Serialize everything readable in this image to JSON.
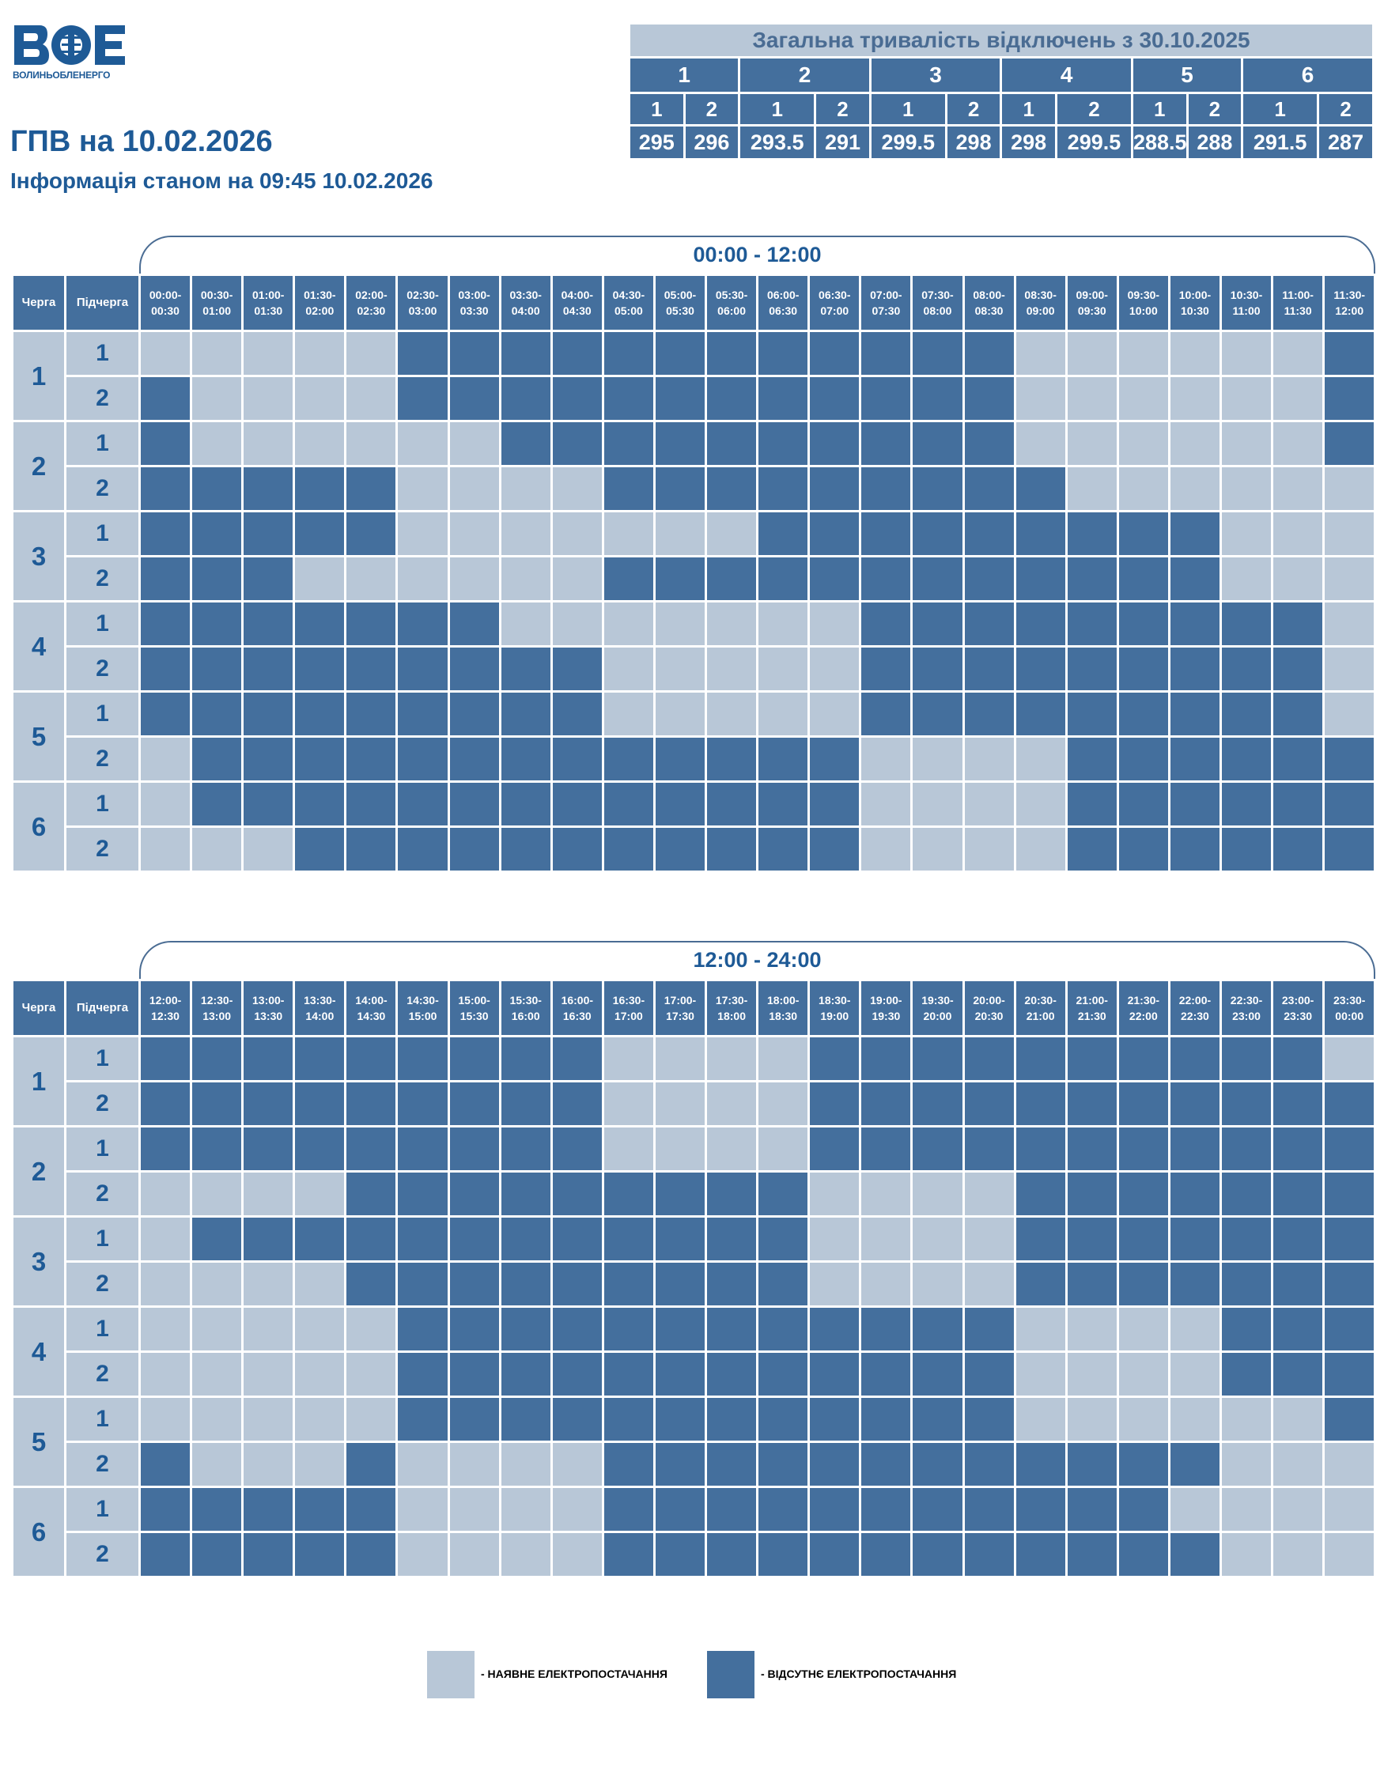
{
  "logo": {
    "caption": "ВОЛИНЬОБЛЕНЕРГО",
    "mark": "ВОЕ"
  },
  "title": "ГПВ на 10.02.2026",
  "subtitle": "Інформація станом на 09:45 10.02.2026",
  "summary": {
    "title": "Загальна тривалість відключень з 30.10.2025",
    "queues": [
      "1",
      "2",
      "3",
      "4",
      "5",
      "6"
    ],
    "subqueues": [
      "1",
      "2",
      "1",
      "2",
      "1",
      "2",
      "1",
      "2",
      "1",
      "2",
      "1",
      "2"
    ],
    "values": [
      "295",
      "296",
      "293.5",
      "291",
      "299.5",
      "298",
      "298",
      "299.5",
      "288.5",
      "288",
      "291.5",
      "287"
    ]
  },
  "table_headers": {
    "queue": "Черга",
    "subqueue": "Підчерга"
  },
  "blocks": [
    {
      "range": "00:00 - 12:00",
      "slots": [
        [
          "00:00-",
          "00:30"
        ],
        [
          "00:30-",
          "01:00"
        ],
        [
          "01:00-",
          "01:30"
        ],
        [
          "01:30-",
          "02:00"
        ],
        [
          "02:00-",
          "02:30"
        ],
        [
          "02:30-",
          "03:00"
        ],
        [
          "03:00-",
          "03:30"
        ],
        [
          "03:30-",
          "04:00"
        ],
        [
          "04:00-",
          "04:30"
        ],
        [
          "04:30-",
          "05:00"
        ],
        [
          "05:00-",
          "05:30"
        ],
        [
          "05:30-",
          "06:00"
        ],
        [
          "06:00-",
          "06:30"
        ],
        [
          "06:30-",
          "07:00"
        ],
        [
          "07:00-",
          "07:30"
        ],
        [
          "07:30-",
          "08:00"
        ],
        [
          "08:00-",
          "08:30"
        ],
        [
          "08:30-",
          "09:00"
        ],
        [
          "09:00-",
          "09:30"
        ],
        [
          "09:30-",
          "10:00"
        ],
        [
          "10:00-",
          "10:30"
        ],
        [
          "10:30-",
          "11:00"
        ],
        [
          "11:00-",
          "11:30"
        ],
        [
          "11:30-",
          "12:00"
        ]
      ],
      "rows": [
        {
          "queue": "1",
          "sub": "1",
          "cells": "000001111111111110000001"
        },
        {
          "queue": "1",
          "sub": "2",
          "cells": "100001111111111110000001"
        },
        {
          "queue": "2",
          "sub": "1",
          "cells": "100000011111111110000001"
        },
        {
          "queue": "2",
          "sub": "2",
          "cells": "111110000111111111000000"
        },
        {
          "queue": "3",
          "sub": "1",
          "cells": "111110000000111111111000"
        },
        {
          "queue": "3",
          "sub": "2",
          "cells": "111000000111111111111000"
        },
        {
          "queue": "4",
          "sub": "1",
          "cells": "111111100000001111111110"
        },
        {
          "queue": "4",
          "sub": "2",
          "cells": "111111111000001111111110"
        },
        {
          "queue": "5",
          "sub": "1",
          "cells": "111111111000001111111110"
        },
        {
          "queue": "5",
          "sub": "2",
          "cells": "011111111111110000111111"
        },
        {
          "queue": "6",
          "sub": "1",
          "cells": "011111111111110000111111"
        },
        {
          "queue": "6",
          "sub": "2",
          "cells": "000111111111110000111111"
        }
      ]
    },
    {
      "range": "12:00 - 24:00",
      "slots": [
        [
          "12:00-",
          "12:30"
        ],
        [
          "12:30-",
          "13:00"
        ],
        [
          "13:00-",
          "13:30"
        ],
        [
          "13:30-",
          "14:00"
        ],
        [
          "14:00-",
          "14:30"
        ],
        [
          "14:30-",
          "15:00"
        ],
        [
          "15:00-",
          "15:30"
        ],
        [
          "15:30-",
          "16:00"
        ],
        [
          "16:00-",
          "16:30"
        ],
        [
          "16:30-",
          "17:00"
        ],
        [
          "17:00-",
          "17:30"
        ],
        [
          "17:30-",
          "18:00"
        ],
        [
          "18:00-",
          "18:30"
        ],
        [
          "18:30-",
          "19:00"
        ],
        [
          "19:00-",
          "19:30"
        ],
        [
          "19:30-",
          "20:00"
        ],
        [
          "20:00-",
          "20:30"
        ],
        [
          "20:30-",
          "21:00"
        ],
        [
          "21:00-",
          "21:30"
        ],
        [
          "21:30-",
          "22:00"
        ],
        [
          "22:00-",
          "22:30"
        ],
        [
          "22:30-",
          "23:00"
        ],
        [
          "23:00-",
          "23:30"
        ],
        [
          "23:30-",
          "00:00"
        ]
      ],
      "rows": [
        {
          "queue": "1",
          "sub": "1",
          "cells": "111111111000011111111110"
        },
        {
          "queue": "1",
          "sub": "2",
          "cells": "111111111000011111111111"
        },
        {
          "queue": "2",
          "sub": "1",
          "cells": "111111111000011111111111"
        },
        {
          "queue": "2",
          "sub": "2",
          "cells": "000011111111100001111111"
        },
        {
          "queue": "3",
          "sub": "1",
          "cells": "011111111111100001111111"
        },
        {
          "queue": "3",
          "sub": "2",
          "cells": "000011111111100001111111"
        },
        {
          "queue": "4",
          "sub": "1",
          "cells": "000001111111111110000111"
        },
        {
          "queue": "4",
          "sub": "2",
          "cells": "000001111111111110000111"
        },
        {
          "queue": "5",
          "sub": "1",
          "cells": "000001111111111110000001"
        },
        {
          "queue": "5",
          "sub": "2",
          "cells": "100010000111111111111000"
        },
        {
          "queue": "6",
          "sub": "1",
          "cells": "111110000111111111110000"
        },
        {
          "queue": "6",
          "sub": "2",
          "cells": "111110000111111111111000"
        }
      ]
    }
  ],
  "legend": {
    "available": "- НАЯВНЕ ЕЛЕКТРОПОСТАЧАННЯ",
    "absent": "- ВІДСУТНЄ ЕЛЕКТРОПОСТАЧАННЯ"
  },
  "colors": {
    "available": "#b8c7d7",
    "absent": "#446f9d",
    "text": "#1e5a96"
  }
}
